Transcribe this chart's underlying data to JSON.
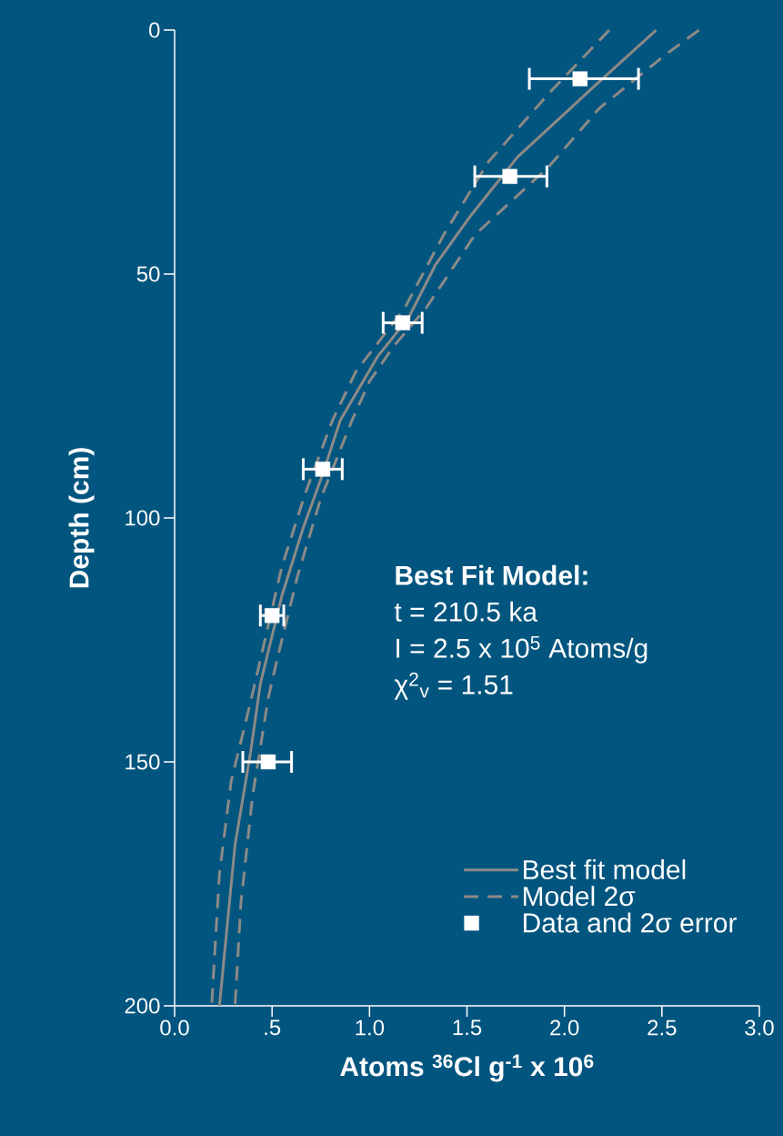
{
  "chart_data": {
    "type": "scatter",
    "xlabel": "Atoms  $^{36}$Cl g$^{-1}$  x 10$^{6}$",
    "ylabel": "Depth (cm)",
    "annotations": [
      "Best Fit Model:",
      "t = 210.5 ka",
      "I = 2.5 x 10$^{5}$  Atoms/g",
      "χ$^{2}$$_{v}$  = 1.51"
    ],
    "xlim": [
      0,
      3
    ],
    "ylim": [
      200,
      0
    ],
    "xticks": [
      {
        "value": 0,
        "label": "0.0"
      },
      {
        "value": 0.5,
        "label": ".5"
      },
      {
        "value": 1,
        "label": "1.0"
      },
      {
        "value": 1.5,
        "label": "1.5"
      },
      {
        "value": 2,
        "label": "2.0"
      },
      {
        "value": 2.5,
        "label": "2.5"
      },
      {
        "value": 3,
        "label": "3.0"
      }
    ],
    "yticks": [
      0,
      50,
      100,
      150,
      200
    ],
    "grid": false,
    "legend": "bottom right",
    "series": [
      {
        "name": "Best fit model",
        "type": "line",
        "color": "#8c8a87",
        "line_style": "solid",
        "marker": "none",
        "x": [
          2.47,
          2.14,
          1.76,
          1.52,
          1.34,
          1.2,
          1.04,
          0.85,
          0.76,
          0.66,
          0.55,
          0.44,
          0.39,
          0.31,
          0.23
        ],
        "values": [
          0,
          12,
          26,
          38,
          48,
          59,
          67,
          80,
          91,
          102,
          116,
          134,
          148,
          167,
          200
        ]
      },
      {
        "name": "Model  2σ",
        "type": "line",
        "color": "#8c8a87",
        "line_style": "dashed",
        "marker": "none",
        "x": [
          2.69,
          2.52,
          2.18,
          1.92,
          1.54,
          1.29,
          1.12,
          1.0,
          0.91,
          0.75,
          0.63,
          0.52,
          0.48,
          0.4,
          0.34,
          0.31
        ],
        "values": [
          0,
          5,
          16,
          28,
          42,
          57,
          65,
          72,
          80,
          96,
          112,
          130,
          137,
          157,
          179,
          200
        ]
      },
      {
        "type": "line",
        "color": "#8c8a87",
        "line_style": "dashed",
        "marker": "none",
        "x": [
          2.23,
          1.92,
          1.61,
          1.38,
          1.18,
          0.93,
          0.81,
          0.67,
          0.55,
          0.4,
          0.29,
          0.23,
          0.19
        ],
        "values": [
          0,
          13,
          27,
          42,
          57,
          70,
          80,
          95,
          110,
          136,
          154,
          173,
          200
        ]
      },
      {
        "name": "Data and 2σ error",
        "color": "#ffffff",
        "marker": "square",
        "x": [
          2.08,
          1.72,
          1.17,
          0.76,
          0.5,
          0.48
        ],
        "values": [
          10,
          30,
          60,
          90,
          120,
          150
        ],
        "xerrors": [
          [
            1.82,
            2.38
          ],
          [
            1.54,
            1.91
          ],
          [
            1.07,
            1.27
          ],
          [
            0.66,
            0.86
          ],
          [
            0.44,
            0.56
          ],
          [
            0.35,
            0.6
          ]
        ]
      }
    ]
  }
}
